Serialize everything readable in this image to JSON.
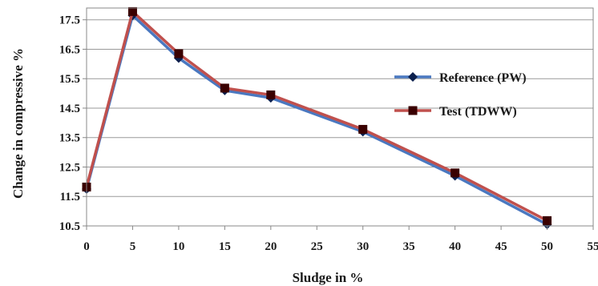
{
  "chart_data": {
    "type": "line",
    "title": "",
    "xlabel": "Sludge in %",
    "ylabel": "Change in compressive %",
    "x_ticks": [
      "0",
      "5",
      "10",
      "15",
      "20",
      "25",
      "30",
      "35",
      "40",
      "45",
      "50",
      "55"
    ],
    "y_ticks": [
      "10.5",
      "11.5",
      "12.5",
      "13.5",
      "14.5",
      "15.5",
      "16.5",
      "17.5"
    ],
    "xlim": [
      0,
      55
    ],
    "ylim": [
      10.5,
      17.9
    ],
    "grid": "horizontal",
    "legend_position": "right",
    "x": [
      0,
      5,
      10,
      15,
      20,
      30,
      40,
      50
    ],
    "series": [
      {
        "name": "Reference (PW)",
        "values": [
          11.75,
          17.65,
          16.2,
          15.1,
          14.85,
          13.7,
          12.2,
          10.55
        ],
        "color": "#4a78c0",
        "marker_color": "#0b1f4d",
        "marker": "diamond"
      },
      {
        "name": "Test (TDWW)",
        "values": [
          11.82,
          17.78,
          16.35,
          15.18,
          14.95,
          13.78,
          12.3,
          10.68
        ],
        "color": "#c0504d",
        "marker_color": "#3a0000",
        "marker": "square"
      }
    ]
  }
}
